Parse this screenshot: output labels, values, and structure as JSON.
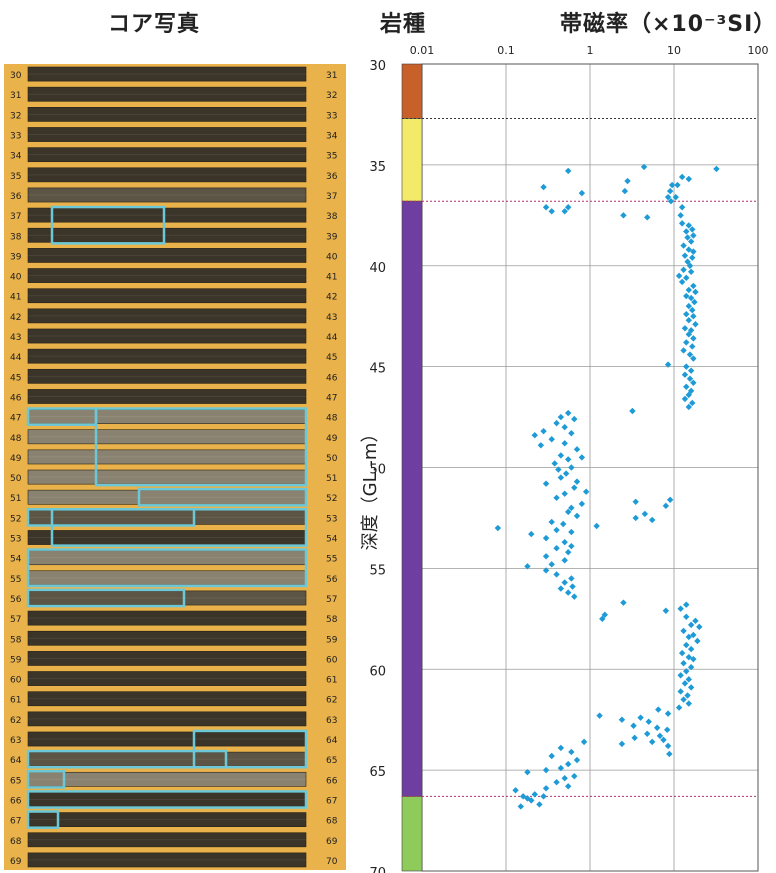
{
  "headers": {
    "core_photo": "コア写真",
    "rock_type": "岩種",
    "susceptibility": "帯磁率（×10⁻³SI）"
  },
  "core_photo": {
    "rows_left": [
      "30",
      "31",
      "32",
      "33",
      "34",
      "35",
      "36",
      "37",
      "38",
      "39",
      "40",
      "41",
      "42",
      "43",
      "44",
      "45",
      "46",
      "47",
      "48",
      "49",
      "50",
      "51",
      "52",
      "53",
      "54",
      "55",
      "56",
      "57",
      "58",
      "59",
      "60",
      "61",
      "62",
      "63",
      "64",
      "65",
      "66",
      "67",
      "68",
      "69"
    ],
    "rows_right": [
      "31",
      "32",
      "33",
      "34",
      "35",
      "36",
      "37",
      "38",
      "39",
      "40",
      "41",
      "42",
      "43",
      "44",
      "45",
      "46",
      "47",
      "48",
      "49",
      "50",
      "51",
      "52",
      "53",
      "54",
      "55",
      "56",
      "57",
      "58",
      "59",
      "60",
      "61",
      "62",
      "63",
      "64",
      "65",
      "66",
      "67",
      "68",
      "69",
      "70"
    ],
    "colors": {
      "frame": "#e9b24a",
      "core_dark": "#3b3428",
      "core_light": "#8a8270",
      "highlight": "#6cc8d6"
    }
  },
  "chart_data": {
    "type": "scatter",
    "title": "",
    "xlabel": "帯磁率（×10⁻³SI）",
    "ylabel": "深度（GL.-m）",
    "x_scale": "log",
    "xlim": [
      0.01,
      100
    ],
    "ylim": [
      70,
      30
    ],
    "x_ticks": [
      "0.01",
      "0.1",
      "1",
      "10",
      "100"
    ],
    "y_ticks": [
      "30",
      "35",
      "40",
      "45",
      "50",
      "55",
      "60",
      "65",
      "70"
    ],
    "grid": true,
    "marker_color": "#1e9bd7",
    "rock_layers": [
      {
        "top": 30,
        "bottom": 32.7,
        "color": "#c8602a"
      },
      {
        "top": 32.7,
        "bottom": 36.8,
        "color": "#f3ea6a"
      },
      {
        "top": 36.8,
        "bottom": 66.3,
        "color": "#6e3fa0"
      },
      {
        "top": 66.3,
        "bottom": 70,
        "color": "#8fcb5a"
      }
    ],
    "boundaries": [
      {
        "depth": 32.7,
        "color": "#333333"
      },
      {
        "depth": 36.8,
        "color": "#b0306a"
      },
      {
        "depth": 66.3,
        "color": "#b0306a"
      }
    ],
    "series": [
      {
        "values": [
          [
            0.55,
            35.3
          ],
          [
            4.4,
            35.1
          ],
          [
            32,
            35.2
          ],
          [
            12.5,
            35.6
          ],
          [
            15,
            35.7
          ],
          [
            2.8,
            35.8
          ],
          [
            9.5,
            36.0
          ],
          [
            0.28,
            36.1
          ],
          [
            11,
            36.0
          ],
          [
            2.6,
            36.3
          ],
          [
            9,
            36.3
          ],
          [
            0.8,
            36.4
          ],
          [
            8.5,
            36.6
          ],
          [
            10.5,
            36.6
          ],
          [
            9.2,
            36.8
          ],
          [
            0.3,
            37.1
          ],
          [
            0.55,
            37.1
          ],
          [
            12.5,
            37.1
          ],
          [
            0.35,
            37.3
          ],
          [
            0.5,
            37.3
          ],
          [
            2.5,
            37.5
          ],
          [
            12,
            37.5
          ],
          [
            4.8,
            37.6
          ],
          [
            12.5,
            37.9
          ],
          [
            15,
            38.0
          ],
          [
            16.5,
            38.2
          ],
          [
            14,
            38.3
          ],
          [
            17,
            38.5
          ],
          [
            14.5,
            38.6
          ],
          [
            16,
            38.8
          ],
          [
            13,
            39.0
          ],
          [
            15,
            39.2
          ],
          [
            17,
            39.3
          ],
          [
            13.5,
            39.5
          ],
          [
            16.5,
            39.6
          ],
          [
            14.5,
            39.8
          ],
          [
            15.5,
            40.0
          ],
          [
            13,
            40.2
          ],
          [
            16,
            40.3
          ],
          [
            11.5,
            40.5
          ],
          [
            14,
            40.6
          ],
          [
            12.5,
            40.8
          ],
          [
            17,
            41.0
          ],
          [
            15,
            41.2
          ],
          [
            18,
            41.3
          ],
          [
            14,
            41.5
          ],
          [
            16,
            41.6
          ],
          [
            17.5,
            41.8
          ],
          [
            15,
            42.0
          ],
          [
            16.5,
            42.2
          ],
          [
            14,
            42.4
          ],
          [
            17,
            42.5
          ],
          [
            15,
            42.7
          ],
          [
            18,
            42.9
          ],
          [
            13.5,
            43.1
          ],
          [
            16,
            43.2
          ],
          [
            15,
            43.4
          ],
          [
            17,
            43.6
          ],
          [
            14,
            43.8
          ],
          [
            16.5,
            44.0
          ],
          [
            13,
            44.2
          ],
          [
            15.5,
            44.4
          ],
          [
            17,
            44.6
          ],
          [
            8.5,
            44.9
          ],
          [
            14,
            45.0
          ],
          [
            16,
            45.2
          ],
          [
            13.5,
            45.4
          ],
          [
            15.5,
            45.6
          ],
          [
            17,
            45.8
          ],
          [
            14,
            46.0
          ],
          [
            16,
            46.2
          ],
          [
            15,
            46.4
          ],
          [
            13.5,
            46.6
          ],
          [
            16.5,
            46.8
          ],
          [
            15,
            47.0
          ],
          [
            0.55,
            47.3
          ],
          [
            0.45,
            47.5
          ],
          [
            0.65,
            47.6
          ],
          [
            3.2,
            47.2
          ],
          [
            0.4,
            47.8
          ],
          [
            0.5,
            48.0
          ],
          [
            0.28,
            48.2
          ],
          [
            0.6,
            48.3
          ],
          [
            0.22,
            48.4
          ],
          [
            0.35,
            48.6
          ],
          [
            0.5,
            48.8
          ],
          [
            0.26,
            48.9
          ],
          [
            0.7,
            49.1
          ],
          [
            0.45,
            49.4
          ],
          [
            0.8,
            49.5
          ],
          [
            0.55,
            49.6
          ],
          [
            0.38,
            49.8
          ],
          [
            0.6,
            50.0
          ],
          [
            0.42,
            50.1
          ],
          [
            0.52,
            50.3
          ],
          [
            0.45,
            50.5
          ],
          [
            0.7,
            50.7
          ],
          [
            0.3,
            50.8
          ],
          [
            0.65,
            51.0
          ],
          [
            0.9,
            51.2
          ],
          [
            0.5,
            51.3
          ],
          [
            0.4,
            51.5
          ],
          [
            3.5,
            51.7
          ],
          [
            9,
            51.6
          ],
          [
            8,
            51.9
          ],
          [
            0.8,
            51.8
          ],
          [
            0.6,
            52.0
          ],
          [
            0.55,
            52.2
          ],
          [
            4.5,
            52.3
          ],
          [
            0.7,
            52.4
          ],
          [
            3.5,
            52.5
          ],
          [
            0.35,
            52.7
          ],
          [
            0.48,
            52.8
          ],
          [
            5.5,
            52.6
          ],
          [
            1.2,
            52.9
          ],
          [
            0.08,
            53.0
          ],
          [
            0.4,
            53.1
          ],
          [
            0.6,
            53.2
          ],
          [
            0.2,
            53.3
          ],
          [
            0.3,
            53.5
          ],
          [
            0.5,
            53.7
          ],
          [
            0.6,
            53.9
          ],
          [
            0.4,
            54.0
          ],
          [
            0.55,
            54.2
          ],
          [
            0.3,
            54.4
          ],
          [
            0.5,
            54.6
          ],
          [
            0.35,
            54.8
          ],
          [
            0.18,
            54.9
          ],
          [
            0.3,
            55.1
          ],
          [
            0.4,
            55.3
          ],
          [
            0.6,
            55.5
          ],
          [
            0.5,
            55.7
          ],
          [
            0.62,
            55.9
          ],
          [
            0.45,
            56.0
          ],
          [
            0.55,
            56.2
          ],
          [
            0.65,
            56.4
          ],
          [
            14,
            56.8
          ],
          [
            12,
            57.0
          ],
          [
            8,
            57.1
          ],
          [
            2.5,
            56.7
          ],
          [
            1.5,
            57.3
          ],
          [
            1.4,
            57.5
          ],
          [
            14,
            57.4
          ],
          [
            18,
            57.6
          ],
          [
            16,
            57.8
          ],
          [
            20,
            57.9
          ],
          [
            13,
            58.1
          ],
          [
            17,
            58.3
          ],
          [
            15,
            58.4
          ],
          [
            19,
            58.6
          ],
          [
            14,
            58.8
          ],
          [
            16,
            59.0
          ],
          [
            12.5,
            59.2
          ],
          [
            15,
            59.4
          ],
          [
            17,
            59.5
          ],
          [
            13,
            59.7
          ],
          [
            16,
            59.9
          ],
          [
            14,
            60.1
          ],
          [
            12,
            60.3
          ],
          [
            15,
            60.5
          ],
          [
            13.5,
            60.7
          ],
          [
            16,
            60.9
          ],
          [
            12,
            61.1
          ],
          [
            14.5,
            61.3
          ],
          [
            13,
            61.5
          ],
          [
            15,
            61.7
          ],
          [
            11.5,
            61.9
          ],
          [
            6.5,
            62.0
          ],
          [
            8.5,
            62.2
          ],
          [
            1.3,
            62.3
          ],
          [
            2.4,
            62.5
          ],
          [
            4,
            62.4
          ],
          [
            5,
            62.6
          ],
          [
            3.3,
            62.8
          ],
          [
            6.3,
            62.9
          ],
          [
            8.3,
            63.0
          ],
          [
            4.8,
            63.2
          ],
          [
            6.8,
            63.3
          ],
          [
            3.4,
            63.4
          ],
          [
            7.5,
            63.5
          ],
          [
            5.5,
            63.6
          ],
          [
            0.85,
            63.6
          ],
          [
            2.4,
            63.7
          ],
          [
            8.5,
            63.8
          ],
          [
            0.45,
            63.9
          ],
          [
            0.6,
            64.1
          ],
          [
            8.8,
            64.2
          ],
          [
            0.35,
            64.3
          ],
          [
            0.7,
            64.5
          ],
          [
            0.55,
            64.7
          ],
          [
            0.45,
            64.9
          ],
          [
            0.3,
            65.0
          ],
          [
            0.18,
            65.1
          ],
          [
            0.65,
            65.3
          ],
          [
            0.5,
            65.4
          ],
          [
            0.4,
            65.6
          ],
          [
            0.55,
            65.8
          ],
          [
            0.3,
            65.9
          ],
          [
            0.13,
            66.0
          ],
          [
            0.22,
            66.2
          ],
          [
            0.16,
            66.3
          ],
          [
            0.28,
            66.3
          ],
          [
            0.2,
            66.5
          ],
          [
            0.25,
            66.7
          ],
          [
            0.15,
            66.8
          ],
          [
            0.18,
            66.4
          ]
        ]
      }
    ]
  }
}
